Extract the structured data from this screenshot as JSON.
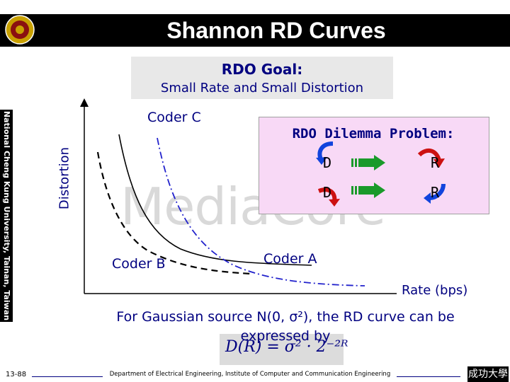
{
  "header": {
    "title": "Shannon RD Curves"
  },
  "sidebar": {
    "text": "National Cheng Kung University, Tainan, Taiwan"
  },
  "goal": {
    "title": "RDO Goal:",
    "text": "Small Rate and Small Distortion"
  },
  "watermark": {
    "text": "MediaCore"
  },
  "dilemma": {
    "title": "RDO Dilemma Problem:",
    "row1": {
      "left": "D",
      "right": "R"
    },
    "row2": {
      "left": "D",
      "right": "R"
    }
  },
  "chart_data": {
    "type": "line",
    "title": "",
    "xlabel": "Rate (bps)",
    "ylabel": "Distortion",
    "series": [
      {
        "name": "Coder A",
        "style": "solid",
        "color": "#000000"
      },
      {
        "name": "Coder B",
        "style": "dashed",
        "color": "#000000"
      },
      {
        "name": "Coder C",
        "style": "dash-dot",
        "color": "#2222cc"
      }
    ]
  },
  "caption": {
    "text": "For Gaussian source N(0, σ²), the RD curve can be expressed by",
    "formula": "D(R) = σ² · 2⁻²ᴿ"
  },
  "footer": {
    "slide_number": "13-88",
    "text": "Department of Electrical Engineering, Institute of Computer and Communication Engineering",
    "logo_text": "成功大學"
  },
  "colors": {
    "text_blue": "#000080",
    "dilemma_bg": "#f8d9f6",
    "arrow_green": "#1a9a2a",
    "arrow_red": "#cc1111",
    "arrow_blue": "#1144dd"
  }
}
